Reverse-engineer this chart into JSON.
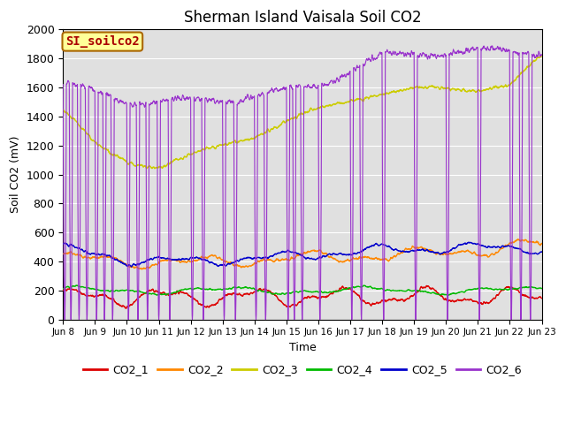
{
  "title": "Sherman Island Vaisala Soil CO2",
  "ylabel": "Soil CO2 (mV)",
  "xlabel": "Time",
  "watermark": "SI_soilco2",
  "ylim": [
    0,
    2000
  ],
  "xlim": [
    0,
    15
  ],
  "bg_color": "#e0e0e0",
  "legend_labels": [
    "CO2_1",
    "CO2_2",
    "CO2_3",
    "CO2_4",
    "CO2_5",
    "CO2_6"
  ],
  "legend_colors": [
    "#dd0000",
    "#ff8800",
    "#cccc00",
    "#00bb00",
    "#0000cc",
    "#9933cc"
  ],
  "xtick_labels": [
    "Jun 8",
    "Jun 9",
    "Jun 10",
    "Jun 11",
    "Jun 12",
    "Jun 13",
    "Jun 14",
    "Jun 15",
    "Jun 16",
    "Jun 17",
    "Jun 18",
    "Jun 19",
    "Jun 20",
    "Jun 21",
    "Jun 22",
    "Jun 23"
  ],
  "xtick_positions": [
    0,
    1,
    2,
    3,
    4,
    5,
    6,
    7,
    8,
    9,
    10,
    11,
    12,
    13,
    14,
    15
  ],
  "ytick_labels": [
    "0",
    "200",
    "400",
    "600",
    "800",
    "1000",
    "1200",
    "1400",
    "1600",
    "1800",
    "2000"
  ],
  "ytick_positions": [
    0,
    200,
    400,
    600,
    800,
    1000,
    1200,
    1400,
    1600,
    1800,
    2000
  ]
}
